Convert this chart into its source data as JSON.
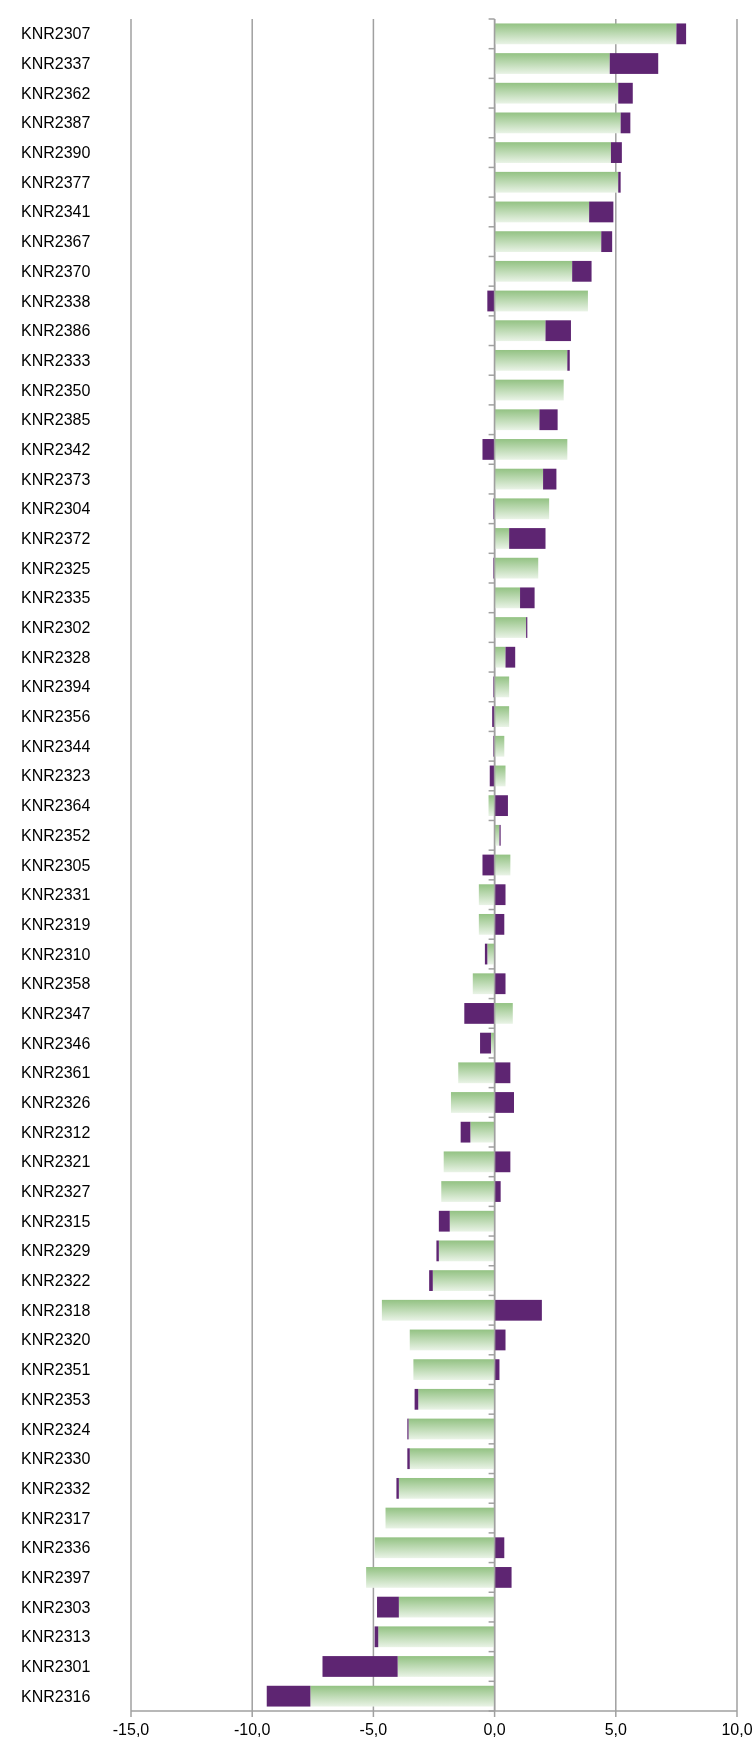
{
  "chart_data": {
    "type": "bar",
    "orientation": "horizontal",
    "stacked": true,
    "grid": "x",
    "categories": [
      "KNR2307",
      "KNR2337",
      "KNR2362",
      "KNR2387",
      "KNR2390",
      "KNR2377",
      "KNR2341",
      "KNR2367",
      "KNR2370",
      "KNR2338",
      "KNR2386",
      "KNR2333",
      "KNR2350",
      "KNR2385",
      "KNR2342",
      "KNR2373",
      "KNR2304",
      "KNR2372",
      "KNR2325",
      "KNR2335",
      "KNR2302",
      "KNR2328",
      "KNR2394",
      "KNR2356",
      "KNR2344",
      "KNR2323",
      "KNR2364",
      "KNR2352",
      "KNR2305",
      "KNR2331",
      "KNR2319",
      "KNR2310",
      "KNR2358",
      "KNR2347",
      "KNR2346",
      "KNR2361",
      "KNR2326",
      "KNR2312",
      "KNR2321",
      "KNR2327",
      "KNR2315",
      "KNR2329",
      "KNR2322",
      "KNR2318",
      "KNR2320",
      "KNR2351",
      "KNR2353",
      "KNR2324",
      "KNR2330",
      "KNR2332",
      "KNR2317",
      "KNR2336",
      "KNR2397",
      "KNR2303",
      "KNR2313",
      "KNR2301",
      "KNR2316"
    ],
    "series": [
      {
        "color": "#93c283",
        "values": [
          7.5,
          4.75,
          5.1,
          5.2,
          4.8,
          5.1,
          3.9,
          4.4,
          3.2,
          3.85,
          2.1,
          3.0,
          2.85,
          1.85,
          3.0,
          2.0,
          2.25,
          0.6,
          1.8,
          1.05,
          1.3,
          0.45,
          0.6,
          0.6,
          0.4,
          0.45,
          -0.25,
          0.2,
          0.65,
          -0.65,
          -0.65,
          -0.3,
          -0.9,
          0.75,
          -0.15,
          -1.5,
          -1.8,
          -1.0,
          -2.1,
          -2.2,
          -1.85,
          -2.3,
          -2.55,
          -4.65,
          -3.5,
          -3.35,
          -3.15,
          -3.55,
          -3.5,
          -3.95,
          -4.5,
          -4.95,
          -5.3,
          -3.95,
          -4.8,
          -4.0,
          -7.6
        ]
      },
      {
        "color": "#5e2572",
        "values": [
          0.4,
          2.0,
          0.6,
          0.4,
          0.45,
          0.1,
          1.0,
          0.45,
          0.8,
          -0.3,
          1.05,
          0.1,
          0,
          0.75,
          -0.5,
          0.55,
          -0.05,
          1.5,
          -0.05,
          0.6,
          0.05,
          0.4,
          -0.05,
          -0.1,
          -0.05,
          -0.2,
          0.55,
          0.05,
          -0.5,
          0.45,
          0.4,
          -0.1,
          0.45,
          -1.25,
          -0.45,
          0.65,
          0.8,
          -0.4,
          0.65,
          0.25,
          -0.45,
          -0.1,
          -0.15,
          1.95,
          0.45,
          0.2,
          -0.15,
          -0.05,
          -0.1,
          -0.1,
          0,
          0.4,
          0.7,
          -0.9,
          -0.15,
          -3.1,
          -1.8
        ]
      }
    ],
    "xlim": [
      -15,
      10
    ],
    "xticks": [
      {
        "value": -15,
        "label": "-15,0"
      },
      {
        "value": -10,
        "label": "-10,0"
      },
      {
        "value": -5,
        "label": "-5,0"
      },
      {
        "value": 0,
        "label": "0,0"
      },
      {
        "value": 5,
        "label": "5,0"
      },
      {
        "value": 10,
        "label": "10,0"
      }
    ]
  }
}
